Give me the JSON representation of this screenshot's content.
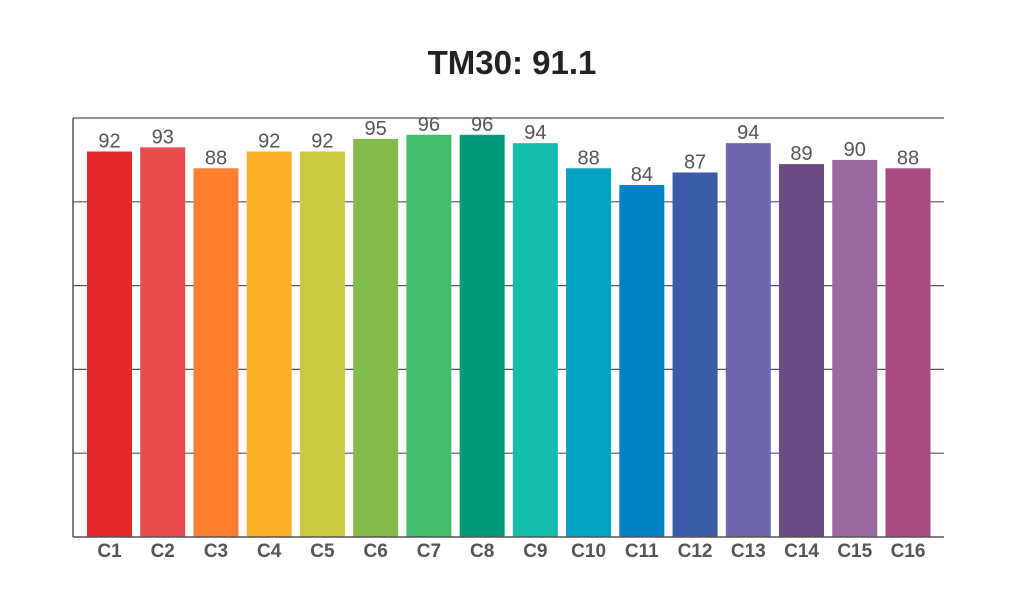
{
  "chart_data": {
    "type": "bar",
    "title": "TM30: 91.1",
    "xlabel": "",
    "ylabel": "",
    "categories": [
      "C1",
      "C2",
      "C3",
      "C4",
      "C5",
      "C6",
      "C7",
      "C8",
      "C9",
      "C10",
      "C11",
      "C12",
      "C13",
      "C14",
      "C15",
      "C16"
    ],
    "values": [
      92,
      93,
      88,
      92,
      92,
      95,
      96,
      96,
      94,
      88,
      84,
      87,
      94,
      89,
      90,
      88
    ],
    "colors": [
      "#e4282b",
      "#e84b4e",
      "#fd7f2f",
      "#fdb12b",
      "#cbc843",
      "#80bb4b",
      "#40be6a",
      "#019b79",
      "#14bdaf",
      "#00a3c0",
      "#0082c4",
      "#3a5da8",
      "#6d67ad",
      "#6a4b83",
      "#9d68a0",
      "#a74a7d"
    ],
    "ylim": [
      0,
      100
    ],
    "yticks": [
      0,
      20,
      40,
      60,
      80,
      100
    ],
    "grid": true,
    "legend": "none"
  }
}
